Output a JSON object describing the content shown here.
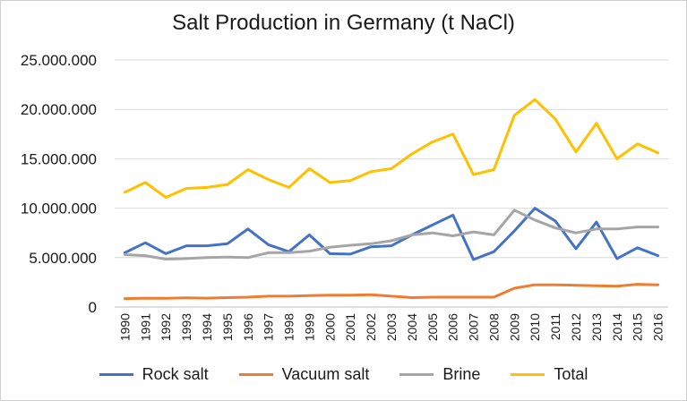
{
  "chart_data": {
    "type": "line",
    "title": "Salt Production in Germany (t NaCl)",
    "xlabel": "",
    "ylabel": "",
    "ylim": [
      0,
      25000000
    ],
    "y_ticks": [
      0,
      5000000,
      10000000,
      15000000,
      20000000,
      25000000
    ],
    "y_tick_labels": [
      "0",
      "5.000.000",
      "10.000.000",
      "15.000.000",
      "20.000.000",
      "25.000.000"
    ],
    "grid": "horizontal",
    "legend_position": "bottom",
    "categories": [
      "1990",
      "1991",
      "1992",
      "1993",
      "1994",
      "1995",
      "1996",
      "1997",
      "1998",
      "1999",
      "2000",
      "2001",
      "2002",
      "2003",
      "2004",
      "2005",
      "2006",
      "2007",
      "2008",
      "2009",
      "2010",
      "2011",
      "2012",
      "2013",
      "2014",
      "2015",
      "2016"
    ],
    "series": [
      {
        "name": "Rock salt",
        "color": "#4472C4",
        "values": [
          5500000,
          6500000,
          5400000,
          6200000,
          6200000,
          6400000,
          7900000,
          6300000,
          5600000,
          7300000,
          5400000,
          5350000,
          6100000,
          6200000,
          7300000,
          8300000,
          9300000,
          4800000,
          5600000,
          7700000,
          10000000,
          8700000,
          5900000,
          8600000,
          4900000,
          6000000,
          5200000
        ]
      },
      {
        "name": "Vacuum salt",
        "color": "#ED7D31",
        "values": [
          850000,
          900000,
          880000,
          920000,
          900000,
          950000,
          1000000,
          1100000,
          1100000,
          1150000,
          1200000,
          1200000,
          1250000,
          1100000,
          950000,
          1000000,
          1000000,
          1000000,
          1000000,
          1900000,
          2250000,
          2250000,
          2200000,
          2150000,
          2100000,
          2300000,
          2250000
        ]
      },
      {
        "name": "Brine",
        "color": "#A5A5A5",
        "values": [
          5300000,
          5200000,
          4850000,
          4900000,
          5000000,
          5050000,
          5000000,
          5500000,
          5500000,
          5650000,
          6050000,
          6250000,
          6400000,
          6700000,
          7300000,
          7500000,
          7200000,
          7600000,
          7300000,
          9800000,
          8800000,
          8000000,
          7500000,
          7900000,
          7900000,
          8100000,
          8100000
        ]
      },
      {
        "name": "Total",
        "color": "#FFC000",
        "values": [
          11600000,
          12600000,
          11100000,
          12000000,
          12100000,
          12400000,
          13900000,
          12900000,
          12100000,
          14000000,
          12600000,
          12800000,
          13700000,
          14000000,
          15500000,
          16700000,
          17500000,
          13400000,
          13900000,
          19400000,
          21000000,
          19000000,
          15700000,
          18600000,
          15000000,
          16500000,
          15600000
        ]
      }
    ]
  }
}
